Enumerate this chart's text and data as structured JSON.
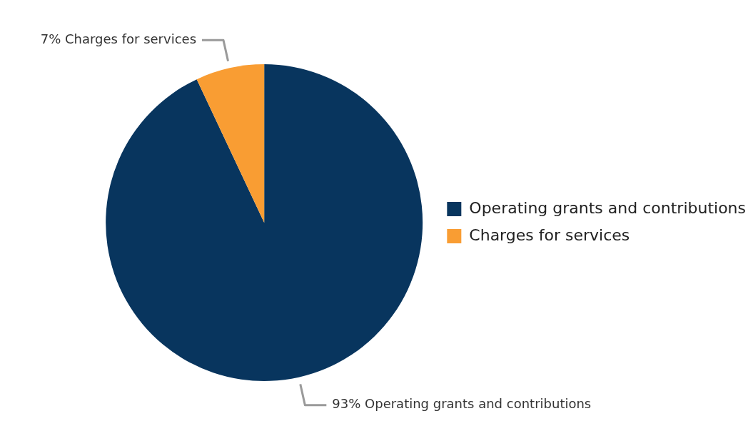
{
  "chart_data": {
    "type": "pie",
    "categories": [
      "Operating grants and contributions",
      "Charges for services"
    ],
    "values": [
      93,
      7
    ],
    "colors": [
      "#08355e",
      "#f99d33"
    ],
    "value_labels": [
      "93% Operating grants and contributions",
      "7% Charges for services"
    ],
    "legend": "right"
  }
}
